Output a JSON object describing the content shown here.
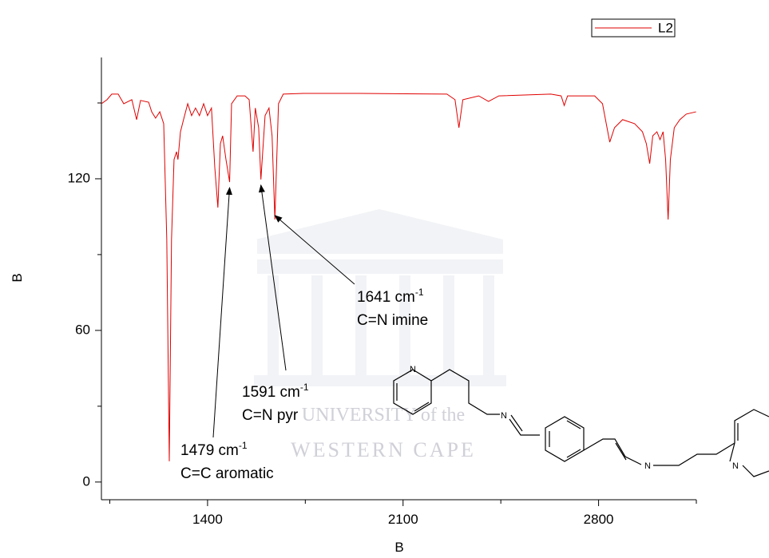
{
  "chart_data": {
    "type": "line",
    "xlabel": "B",
    "ylabel": "B",
    "xlim": [
      1020,
      3150
    ],
    "ylim": [
      -7,
      168
    ],
    "xticks": [
      1400,
      2100,
      2800
    ],
    "xminorticks": [
      1050,
      1750,
      2450,
      3150
    ],
    "yticks": [
      0,
      60,
      120
    ],
    "yminorticks": [
      30,
      90,
      150
    ],
    "legend": "top-right",
    "x": [
      1020,
      1040,
      1057,
      1080,
      1100,
      1129,
      1146,
      1160,
      1189,
      1200,
      1214,
      1229,
      1243,
      1254,
      1263,
      1271,
      1280,
      1289,
      1294,
      1303,
      1314,
      1329,
      1343,
      1357,
      1371,
      1386,
      1400,
      1414,
      1426,
      1437,
      1446,
      1454,
      1466,
      1479,
      1486,
      1506,
      1534,
      1549,
      1563,
      1571,
      1583,
      1591,
      1606,
      1620,
      1631,
      1641,
      1654,
      1671,
      1743,
      1943,
      2257,
      2286,
      2300,
      2314,
      2371,
      2406,
      2443,
      2629,
      2666,
      2677,
      2689,
      2786,
      2814,
      2840,
      2857,
      2886,
      2929,
      2957,
      2971,
      2983,
      2994,
      3009,
      3020,
      3031,
      3040,
      3049,
      3057,
      3071,
      3091,
      3114,
      3149
    ],
    "series": [
      {
        "name": "L2",
        "color": "#e00000",
        "values": [
          149.7,
          151.3,
          153.5,
          153.5,
          149.7,
          151.3,
          143.4,
          151.0,
          150.3,
          146.5,
          144.0,
          146.5,
          141.8,
          96.0,
          8.2,
          96.0,
          127.6,
          130.7,
          127.6,
          138.6,
          143.4,
          149.7,
          145.0,
          148.0,
          145.0,
          149.7,
          145.0,
          148.0,
          124.4,
          108.6,
          133.9,
          137.0,
          127.6,
          118.7,
          149.7,
          152.8,
          152.8,
          151.3,
          130.7,
          148.0,
          140.2,
          119.7,
          145.0,
          148.0,
          137.0,
          103.9,
          149.7,
          153.5,
          153.8,
          153.8,
          153.5,
          151.3,
          140.2,
          151.3,
          152.8,
          150.6,
          152.8,
          153.5,
          152.8,
          149.0,
          152.8,
          152.8,
          149.7,
          134.5,
          140.2,
          143.4,
          141.8,
          138.6,
          133.9,
          126.0,
          137.0,
          138.6,
          135.5,
          138.6,
          127.6,
          103.9,
          127.6,
          140.2,
          143.4,
          145.6,
          146.5
        ]
      }
    ],
    "annotations": [
      {
        "text": "1479 cm",
        "sup": "-1",
        "line2": "C=C aromatic",
        "x": 1479,
        "y": 116.5
      },
      {
        "text": "1591 cm",
        "sup": "-1",
        "line2": "C=N pyr",
        "x": 1591,
        "y": 117.5
      },
      {
        "text": "1641 cm",
        "sup": "-1",
        "line2": "C=N imine",
        "x": 1641,
        "y": 105.5
      }
    ]
  },
  "watermark": [
    "UNIVERSITY of the",
    "WESTERN CAPE"
  ],
  "structure_labels": [
    "N",
    "N",
    "N",
    "N"
  ]
}
